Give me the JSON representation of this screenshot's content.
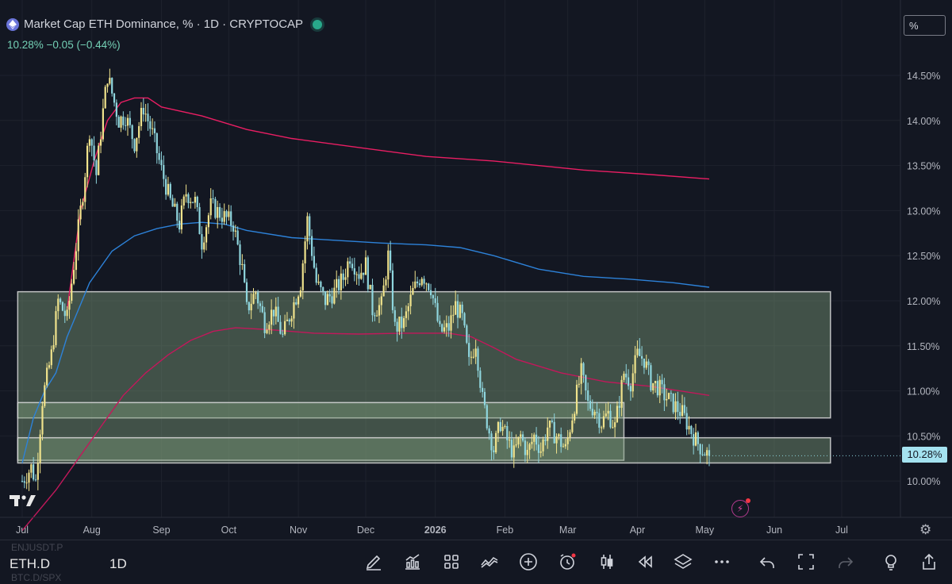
{
  "header": {
    "title": "Market Cap ETH Dominance, % · 1D · CRYPTOCAP",
    "quote": "10.28%  −0.05 (−0.44%)"
  },
  "unit_button": "%",
  "last_price_label": "10.28%",
  "colors": {
    "background": "#131722",
    "bull_candle": "#f0e38c",
    "bear_candle": "#8fd6de",
    "ma_fast": "#e91e63",
    "ma_mid": "#2d82d9",
    "ma_long": "#c2185b",
    "zone_fill": "#7a9a78",
    "zone_border": "#d9d9d9"
  },
  "chart_data": {
    "type": "candlestick",
    "interval": "1D",
    "y_axis": {
      "unit": "%",
      "range": [
        9.7,
        14.9
      ],
      "ticks": [
        "14.50%",
        "14.00%",
        "13.50%",
        "13.00%",
        "12.50%",
        "12.00%",
        "11.50%",
        "11.00%",
        "10.50%",
        "10.00%"
      ],
      "tick_values": [
        14.5,
        14.0,
        13.5,
        13.0,
        12.5,
        12.0,
        11.5,
        11.0,
        10.5,
        10.0
      ]
    },
    "x_axis": {
      "labels": [
        {
          "text": "Jul",
          "day": 0
        },
        {
          "text": "Aug",
          "day": 31
        },
        {
          "text": "Sep",
          "day": 62
        },
        {
          "text": "Oct",
          "day": 92
        },
        {
          "text": "Nov",
          "day": 123
        },
        {
          "text": "Dec",
          "day": 153
        },
        {
          "text": "2026",
          "day": 184
        },
        {
          "text": "Feb",
          "day": 215
        },
        {
          "text": "Mar",
          "day": 243
        },
        {
          "text": "Apr",
          "day": 274
        },
        {
          "text": "May",
          "day": 304
        },
        {
          "text": "Jun",
          "day": 335
        },
        {
          "text": "Jul",
          "day": 365
        }
      ],
      "range_days": [
        -2,
        385
      ]
    },
    "close_keypoints": [
      [
        0,
        10.0
      ],
      [
        4,
        10.15
      ],
      [
        6,
        10.0
      ],
      [
        9,
        10.9
      ],
      [
        13,
        11.4
      ],
      [
        16,
        12.0
      ],
      [
        20,
        11.8
      ],
      [
        24,
        12.6
      ],
      [
        27,
        13.2
      ],
      [
        30,
        13.9
      ],
      [
        33,
        13.4
      ],
      [
        36,
        14.1
      ],
      [
        38,
        14.5
      ],
      [
        40,
        14.3
      ],
      [
        43,
        14.0
      ],
      [
        46,
        14.05
      ],
      [
        50,
        13.75
      ],
      [
        54,
        14.15
      ],
      [
        58,
        13.85
      ],
      [
        62,
        13.45
      ],
      [
        66,
        13.1
      ],
      [
        70,
        12.85
      ],
      [
        73,
        13.2
      ],
      [
        77,
        13.1
      ],
      [
        80,
        12.65
      ],
      [
        84,
        13.05
      ],
      [
        89,
        12.95
      ],
      [
        94,
        12.85
      ],
      [
        98,
        12.35
      ],
      [
        100,
        11.9
      ],
      [
        104,
        12.1
      ],
      [
        108,
        11.75
      ],
      [
        112,
        11.9
      ],
      [
        116,
        11.6
      ],
      [
        120,
        11.9
      ],
      [
        124,
        12.2
      ],
      [
        127,
        12.9
      ],
      [
        131,
        12.2
      ],
      [
        135,
        12.0
      ],
      [
        139,
        12.1
      ],
      [
        143,
        12.25
      ],
      [
        146,
        12.5
      ],
      [
        150,
        12.3
      ],
      [
        153,
        12.4
      ],
      [
        156,
        11.9
      ],
      [
        160,
        11.95
      ],
      [
        163,
        12.5
      ],
      [
        166,
        11.7
      ],
      [
        170,
        11.75
      ],
      [
        174,
        12.1
      ],
      [
        178,
        12.3
      ],
      [
        182,
        12.15
      ],
      [
        186,
        11.65
      ],
      [
        190,
        11.7
      ],
      [
        193,
        11.95
      ],
      [
        196,
        11.8
      ],
      [
        199,
        11.3
      ],
      [
        202,
        11.55
      ],
      [
        205,
        10.9
      ],
      [
        208,
        10.55
      ],
      [
        210,
        10.35
      ],
      [
        213,
        10.65
      ],
      [
        216,
        10.45
      ],
      [
        219,
        10.3
      ],
      [
        222,
        10.5
      ],
      [
        225,
        10.3
      ],
      [
        228,
        10.5
      ],
      [
        231,
        10.35
      ],
      [
        234,
        10.6
      ],
      [
        238,
        10.5
      ],
      [
        242,
        10.35
      ],
      [
        246,
        10.85
      ],
      [
        249,
        11.2
      ],
      [
        252,
        10.85
      ],
      [
        255,
        10.8
      ],
      [
        258,
        10.65
      ],
      [
        261,
        10.75
      ],
      [
        264,
        10.6
      ],
      [
        268,
        11.2
      ],
      [
        271,
        11.1
      ],
      [
        274,
        11.4
      ],
      [
        277,
        11.35
      ],
      [
        280,
        11.1
      ],
      [
        283,
        11.05
      ],
      [
        286,
        10.95
      ],
      [
        290,
        10.85
      ],
      [
        294,
        10.75
      ],
      [
        297,
        10.6
      ],
      [
        300,
        10.45
      ],
      [
        303,
        10.35
      ],
      [
        306,
        10.28
      ]
    ],
    "moving_averages": [
      {
        "points": [
          [
            20,
            11.9
          ],
          [
            26,
            13.0
          ],
          [
            32,
            13.55
          ],
          [
            38,
            14.0
          ],
          [
            44,
            14.2
          ],
          [
            50,
            14.25
          ],
          [
            56,
            14.25
          ],
          [
            62,
            14.15
          ],
          [
            80,
            14.05
          ],
          [
            100,
            13.9
          ],
          [
            120,
            13.8
          ],
          [
            150,
            13.7
          ],
          [
            180,
            13.6
          ],
          [
            210,
            13.55
          ],
          [
            250,
            13.45
          ],
          [
            280,
            13.4
          ],
          [
            306,
            13.35
          ]
        ]
      },
      {
        "points": [
          [
            0,
            10.2
          ],
          [
            5,
            10.7
          ],
          [
            10,
            11.0
          ],
          [
            15,
            11.2
          ],
          [
            20,
            11.6
          ],
          [
            25,
            11.9
          ],
          [
            30,
            12.2
          ],
          [
            40,
            12.55
          ],
          [
            50,
            12.72
          ],
          [
            60,
            12.8
          ],
          [
            70,
            12.85
          ],
          [
            80,
            12.87
          ],
          [
            90,
            12.85
          ],
          [
            100,
            12.78
          ],
          [
            120,
            12.7
          ],
          [
            140,
            12.67
          ],
          [
            160,
            12.64
          ],
          [
            180,
            12.62
          ],
          [
            195,
            12.59
          ],
          [
            210,
            12.5
          ],
          [
            230,
            12.35
          ],
          [
            250,
            12.27
          ],
          [
            270,
            12.24
          ],
          [
            290,
            12.2
          ],
          [
            306,
            12.15
          ]
        ]
      },
      {
        "points": [
          [
            0,
            9.45
          ],
          [
            15,
            9.9
          ],
          [
            25,
            10.25
          ],
          [
            35,
            10.6
          ],
          [
            45,
            10.95
          ],
          [
            55,
            11.2
          ],
          [
            65,
            11.4
          ],
          [
            75,
            11.56
          ],
          [
            85,
            11.66
          ],
          [
            95,
            11.7
          ],
          [
            110,
            11.68
          ],
          [
            130,
            11.64
          ],
          [
            150,
            11.63
          ],
          [
            170,
            11.64
          ],
          [
            190,
            11.64
          ],
          [
            200,
            11.6
          ],
          [
            210,
            11.48
          ],
          [
            220,
            11.35
          ],
          [
            240,
            11.2
          ],
          [
            260,
            11.1
          ],
          [
            280,
            11.05
          ],
          [
            306,
            10.95
          ]
        ]
      }
    ],
    "zones": [
      {
        "y_top": 12.1,
        "y_bottom": 10.7,
        "day_from": -2,
        "day_to": 360
      },
      {
        "y_top": 10.87,
        "y_bottom": 10.23,
        "day_from": -2,
        "day_to": 268
      },
      {
        "y_top": 10.48,
        "y_bottom": 10.2,
        "day_from": -2,
        "day_to": 360
      }
    ],
    "last_price": 10.28
  },
  "toolbar": {
    "symbol": "ETH.D",
    "interval": "1D",
    "ghost_above": "ENJUSDT.P",
    "ghost_below": "BTC.D/SPX"
  }
}
